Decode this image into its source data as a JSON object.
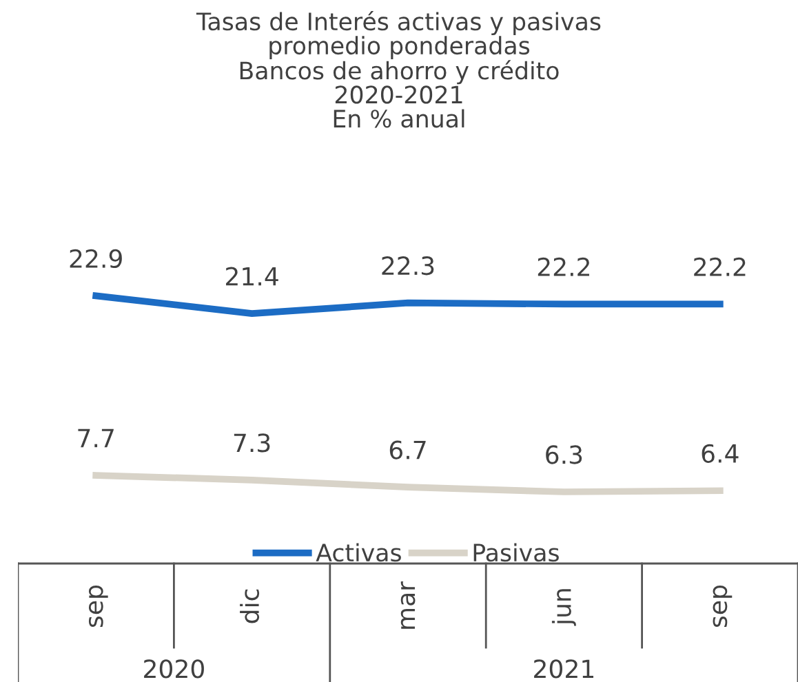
{
  "chart_data": {
    "type": "line",
    "title": "Tasas de Interés activas y pasivas\npromedio ponderadas\nBancos de ahorro y crédito\n2020-2021\nEn % anual",
    "categories": [
      "sep",
      "dic",
      "mar",
      "jun",
      "sep"
    ],
    "series": [
      {
        "name": "Activas",
        "color": "#1c6cc4",
        "values": [
          22.9,
          21.4,
          22.3,
          22.2,
          22.2
        ]
      },
      {
        "name": "Pasivas",
        "color": "#d8d3c8",
        "values": [
          7.7,
          7.3,
          6.7,
          6.3,
          6.4
        ]
      }
    ],
    "data_labels": true,
    "legend": "bottom",
    "annotations": [
      "2020",
      "2021"
    ]
  }
}
